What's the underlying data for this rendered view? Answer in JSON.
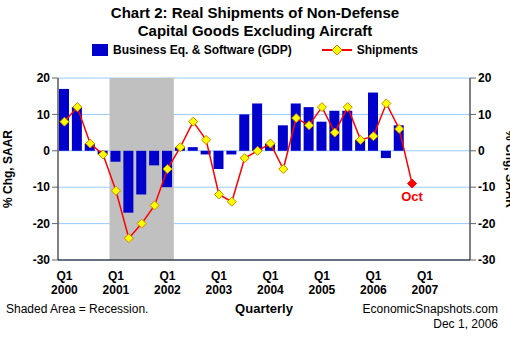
{
  "chart_data": {
    "type": "bar",
    "title": "Chart 2: Real Shipments of Non-Defense Capital Goods Excluding Aircraft",
    "categories": [
      "Q1 2000",
      null,
      null,
      null,
      "Q1 2001",
      null,
      null,
      null,
      "Q1 2002",
      null,
      null,
      null,
      "Q1 2003",
      null,
      null,
      null,
      "Q1 2004",
      null,
      null,
      null,
      "Q1 2005",
      null,
      null,
      null,
      "Q1 2006",
      null,
      null,
      null,
      "Q1 2007",
      null,
      null,
      null
    ],
    "series": [
      {
        "name": "Business Eq. & Software (GDP)",
        "type": "bar",
        "color": "#0000cc",
        "values": [
          17,
          12,
          2,
          -1,
          -3,
          -17,
          -12,
          -4,
          -10,
          1,
          1,
          -1,
          -5,
          -1,
          10,
          13,
          2,
          7,
          13,
          12,
          8,
          11,
          11,
          3,
          16,
          -2,
          7,
          null,
          null,
          null,
          null,
          null
        ]
      },
      {
        "name": "Shipments",
        "type": "line",
        "color": "#ff0000",
        "marker": "diamond",
        "values": [
          8,
          12,
          2,
          -1,
          -11,
          -24,
          -20,
          -15,
          -5,
          1,
          8,
          3,
          -12,
          -14,
          -2,
          0,
          2,
          -5,
          9,
          7,
          12,
          5,
          12,
          3,
          4,
          13,
          6,
          null,
          null,
          null,
          null,
          null
        ]
      }
    ],
    "ylim": [
      -30,
      20
    ],
    "yticks": [
      -30,
      -20,
      -10,
      0,
      10,
      20
    ],
    "y2lim": [
      -30,
      20
    ],
    "y2ticks": [
      -30,
      -20,
      -10,
      0,
      10,
      20
    ],
    "y_label": "% Chg, SAAR",
    "y2_label": "% Chg, SAAR",
    "x_label": "Quarterly",
    "grid": true,
    "recession": {
      "from": 4,
      "to": 8,
      "color": "#c0c0c0"
    },
    "annotations": [
      {
        "text": "Oct",
        "x": 27,
        "y": -9,
        "color": "#ff0000"
      },
      {
        "text": "Shaded Area = Recession."
      },
      {
        "text": "EconomicSnapshots.com"
      },
      {
        "text": "Dec 1, 2006"
      }
    ]
  }
}
